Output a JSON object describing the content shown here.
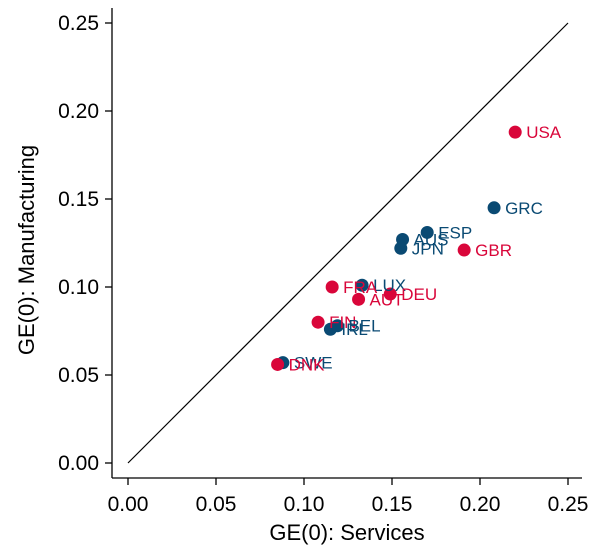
{
  "chart_data": {
    "type": "scatter",
    "xlabel": "GE(0): Services",
    "ylabel": "GE(0): Manufacturing",
    "xlim": [
      0,
      0.25
    ],
    "ylim": [
      0,
      0.25
    ],
    "xticks": [
      "0.00",
      "0.05",
      "0.10",
      "0.15",
      "0.20",
      "0.25"
    ],
    "yticks": [
      "0.00",
      "0.05",
      "0.10",
      "0.15",
      "0.20",
      "0.25"
    ],
    "reference_line": {
      "from": [
        0,
        0
      ],
      "to": [
        0.25,
        0.25
      ]
    },
    "colors": {
      "red": "#d9063a",
      "blue": "#0a4a73"
    },
    "points": [
      {
        "label": "USA",
        "x": 0.22,
        "y": 0.188,
        "color": "red"
      },
      {
        "label": "GRC",
        "x": 0.208,
        "y": 0.145,
        "color": "blue"
      },
      {
        "label": "GBR",
        "x": 0.191,
        "y": 0.121,
        "color": "red"
      },
      {
        "label": "ESP",
        "x": 0.17,
        "y": 0.131,
        "color": "blue"
      },
      {
        "label": "AUS",
        "x": 0.156,
        "y": 0.127,
        "color": "blue"
      },
      {
        "label": "JPN",
        "x": 0.155,
        "y": 0.122,
        "color": "blue"
      },
      {
        "label": "LUX",
        "x": 0.133,
        "y": 0.101,
        "color": "blue"
      },
      {
        "label": "FRA",
        "x": 0.116,
        "y": 0.1,
        "color": "red"
      },
      {
        "label": "DEU",
        "x": 0.149,
        "y": 0.096,
        "color": "red"
      },
      {
        "label": "AUT",
        "x": 0.131,
        "y": 0.093,
        "color": "red"
      },
      {
        "label": "FIN",
        "x": 0.108,
        "y": 0.08,
        "color": "red"
      },
      {
        "label": "BEL",
        "x": 0.119,
        "y": 0.078,
        "color": "blue"
      },
      {
        "label": "IRL",
        "x": 0.115,
        "y": 0.076,
        "color": "blue"
      },
      {
        "label": "SWE",
        "x": 0.088,
        "y": 0.057,
        "color": "blue"
      },
      {
        "label": "DNK",
        "x": 0.085,
        "y": 0.056,
        "color": "red"
      }
    ]
  }
}
